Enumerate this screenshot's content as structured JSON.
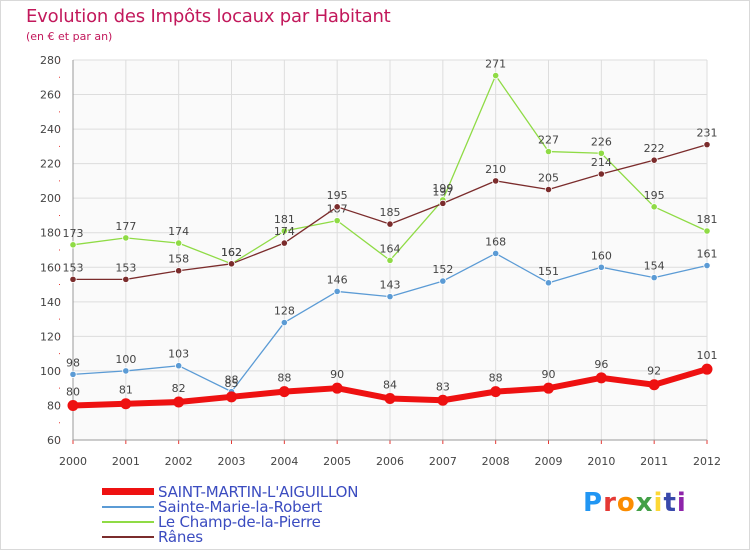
{
  "title": "Evolution des Impôts locaux par Habitant",
  "subtitle": "(en € et par an)",
  "brand": {
    "text": "Proxiti",
    "letters": [
      "P",
      "r",
      "o",
      "x",
      "i",
      "t",
      "i"
    ],
    "colors": [
      "#2196f3",
      "#e53935",
      "#fb8c00",
      "#43a047",
      "#fdd835",
      "#3949ab",
      "#8e24aa"
    ]
  },
  "chart_data": {
    "type": "line",
    "title": "Evolution des Impôts locaux par Habitant",
    "ylabel": "(en € et par an)",
    "x": [
      "2000",
      "2001",
      "2002",
      "2003",
      "2004",
      "2005",
      "2006",
      "2007",
      "2008",
      "2009",
      "2010",
      "2011",
      "2012"
    ],
    "ylim": [
      60,
      280
    ],
    "yticks": [
      "60",
      "80",
      "100",
      "120",
      "140",
      "160",
      "180",
      "200",
      "220",
      "240",
      "260",
      "280"
    ],
    "grid": true,
    "legend_position": "bottom-left",
    "series": [
      {
        "name": "Sainte-Marie-la-Robert",
        "values": [
          98,
          100,
          103,
          88,
          128,
          146,
          143,
          152,
          168,
          151,
          160,
          154,
          161
        ],
        "color": "#5b9bd5",
        "width": 1.3
      },
      {
        "name": "Le Champ-de-la-Pierre",
        "values": [
          173,
          177,
          174,
          162,
          181,
          187,
          164,
          199,
          271,
          227,
          226,
          195,
          181
        ],
        "color": "#8fdb45",
        "width": 1.3
      },
      {
        "name": "Rânes",
        "values": [
          153,
          153,
          158,
          162,
          174,
          195,
          185,
          197,
          210,
          205,
          214,
          222,
          231
        ],
        "color": "#7b2c2c",
        "width": 1.3
      },
      {
        "name": "SAINT-MARTIN-L'AIGUILLON",
        "values": [
          80,
          81,
          82,
          85,
          88,
          90,
          84,
          83,
          88,
          90,
          96,
          92,
          101
        ],
        "color": "#ee1111",
        "width": 6
      }
    ],
    "legend": [
      {
        "name": "SAINT-MARTIN-L'AIGUILLON",
        "color": "#ee1111",
        "thick": true
      },
      {
        "name": "Sainte-Marie-la-Robert",
        "color": "#5b9bd5",
        "thick": false
      },
      {
        "name": "Le Champ-de-la-Pierre",
        "color": "#8fdb45",
        "thick": false
      },
      {
        "name": "Rânes",
        "color": "#7b2c2c",
        "thick": false
      }
    ]
  }
}
